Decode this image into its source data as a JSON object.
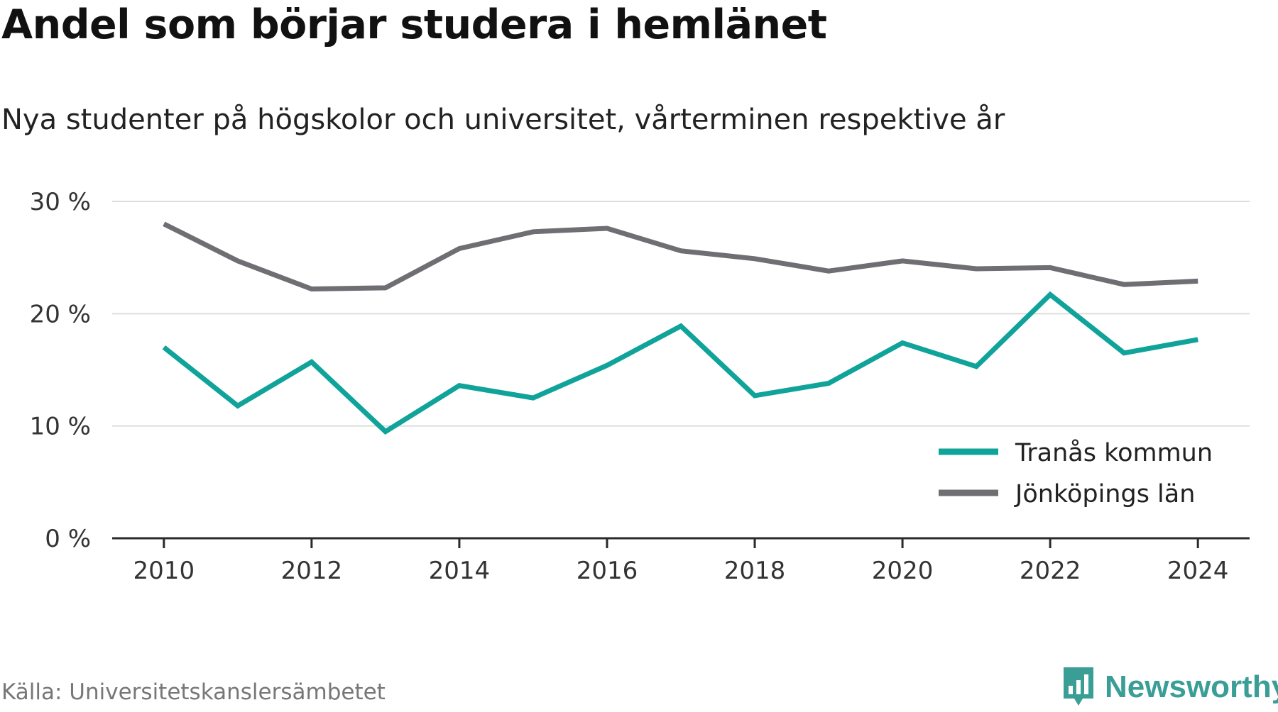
{
  "title": "Andel som börjar studera i hemlänet",
  "subtitle": "Nya studenter på högskolor och universitet, vårterminen respektive år",
  "source": "Källa: Universitetskanslersämbetet",
  "brand": {
    "name": "Newsworthy",
    "icon": "newsworthy-logo-icon",
    "color": "#3a9e97"
  },
  "chart_data": {
    "type": "line",
    "title": "Andel som börjar studera i hemlänet",
    "subtitle": "Nya studenter på högskolor och universitet, vårterminen respektive år",
    "xlabel": "",
    "ylabel": "",
    "x": [
      2010,
      2011,
      2012,
      2013,
      2014,
      2015,
      2016,
      2017,
      2018,
      2019,
      2020,
      2021,
      2022,
      2023,
      2024
    ],
    "x_ticks": [
      2010,
      2012,
      2014,
      2016,
      2018,
      2020,
      2022,
      2024
    ],
    "x_tick_labels": [
      "2010",
      "2012",
      "2014",
      "2016",
      "2018",
      "2020",
      "2022",
      "2024"
    ],
    "y_ticks": [
      0,
      10,
      20,
      30
    ],
    "y_tick_labels": [
      "0 %",
      "10 %",
      "20 %",
      "30 %"
    ],
    "xlim": [
      2009.3,
      2024.7
    ],
    "ylim": [
      0,
      30
    ],
    "grid": true,
    "legend_position": "bottom-right",
    "series": [
      {
        "name": "Tranås kommun",
        "color": "#0fa39a",
        "values": [
          17.0,
          11.8,
          15.7,
          9.5,
          13.6,
          12.5,
          15.4,
          18.9,
          12.7,
          13.8,
          17.4,
          15.3,
          21.7,
          16.5,
          17.7
        ]
      },
      {
        "name": "Jönköpings län",
        "color": "#6f6f73",
        "values": [
          28.0,
          24.7,
          22.2,
          22.3,
          25.8,
          27.3,
          27.6,
          25.6,
          24.9,
          23.8,
          24.7,
          24.0,
          24.1,
          22.6,
          22.9
        ]
      }
    ]
  }
}
